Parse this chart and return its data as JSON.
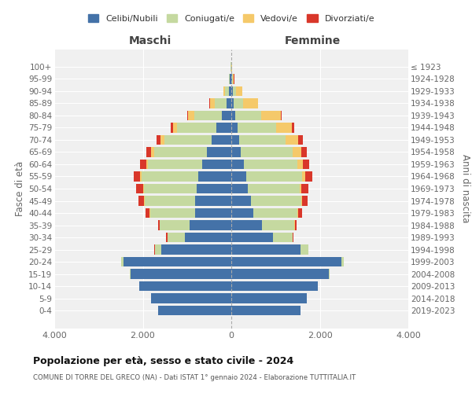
{
  "age_groups": [
    "0-4",
    "5-9",
    "10-14",
    "15-19",
    "20-24",
    "25-29",
    "30-34",
    "35-39",
    "40-44",
    "45-49",
    "50-54",
    "55-59",
    "60-64",
    "65-69",
    "70-74",
    "75-79",
    "80-84",
    "85-89",
    "90-94",
    "95-99",
    "100+"
  ],
  "birth_years": [
    "2019-2023",
    "2014-2018",
    "2009-2013",
    "2004-2008",
    "1999-2003",
    "1994-1998",
    "1989-1993",
    "1984-1988",
    "1979-1983",
    "1974-1978",
    "1969-1973",
    "1964-1968",
    "1959-1963",
    "1954-1958",
    "1949-1953",
    "1944-1948",
    "1939-1943",
    "1934-1938",
    "1929-1933",
    "1924-1928",
    "≤ 1923"
  ],
  "colors": {
    "celibe": "#4472a8",
    "coniugato": "#c5d9a0",
    "vedovo": "#f5c96a",
    "divorziato": "#d9372a"
  },
  "maschi": {
    "celibe": [
      1650,
      1820,
      2080,
      2280,
      2430,
      1580,
      1050,
      940,
      820,
      820,
      790,
      740,
      650,
      560,
      440,
      340,
      210,
      110,
      55,
      28,
      8
    ],
    "coniugato": [
      2,
      2,
      5,
      18,
      55,
      150,
      390,
      670,
      1020,
      1140,
      1190,
      1290,
      1240,
      1190,
      1080,
      880,
      630,
      270,
      80,
      18,
      4
    ],
    "vedovo": [
      0,
      0,
      0,
      0,
      0,
      1,
      2,
      3,
      5,
      10,
      20,
      28,
      38,
      55,
      75,
      90,
      140,
      100,
      38,
      10,
      2
    ],
    "divorziato": [
      0,
      0,
      0,
      1,
      3,
      8,
      25,
      45,
      85,
      128,
      148,
      138,
      128,
      110,
      95,
      55,
      18,
      9,
      4,
      1,
      0
    ]
  },
  "femmine": {
    "celibe": [
      1560,
      1700,
      1960,
      2200,
      2480,
      1570,
      940,
      690,
      490,
      440,
      380,
      340,
      280,
      215,
      175,
      135,
      90,
      58,
      38,
      18,
      5
    ],
    "coniugato": [
      2,
      2,
      4,
      15,
      65,
      168,
      440,
      740,
      1010,
      1140,
      1170,
      1260,
      1220,
      1180,
      1060,
      870,
      590,
      200,
      60,
      14,
      3
    ],
    "vedovo": [
      0,
      0,
      0,
      0,
      0,
      1,
      3,
      5,
      9,
      18,
      38,
      65,
      115,
      190,
      280,
      360,
      440,
      345,
      148,
      30,
      5
    ],
    "divorziato": [
      0,
      0,
      0,
      1,
      3,
      7,
      18,
      36,
      85,
      128,
      150,
      158,
      148,
      128,
      100,
      58,
      20,
      9,
      4,
      1,
      0
    ]
  },
  "title": "Popolazione per età, sesso e stato civile - 2024",
  "subtitle": "COMUNE DI TORRE DEL GRECO (NA) - Dati ISTAT 1° gennaio 2024 - Elaborazione TUTTITALIA.IT",
  "xlabel_left": "Maschi",
  "xlabel_right": "Femmine",
  "ylabel_left": "Fasce di età",
  "ylabel_right": "Anni di nascita",
  "xlim": 4000,
  "xtick_labels": [
    "4.000",
    "2.000",
    "0",
    "2.000",
    "4.000"
  ],
  "bg_color": "#ffffff",
  "plot_bg": "#f0f0f0",
  "grid_color": "#ffffff"
}
